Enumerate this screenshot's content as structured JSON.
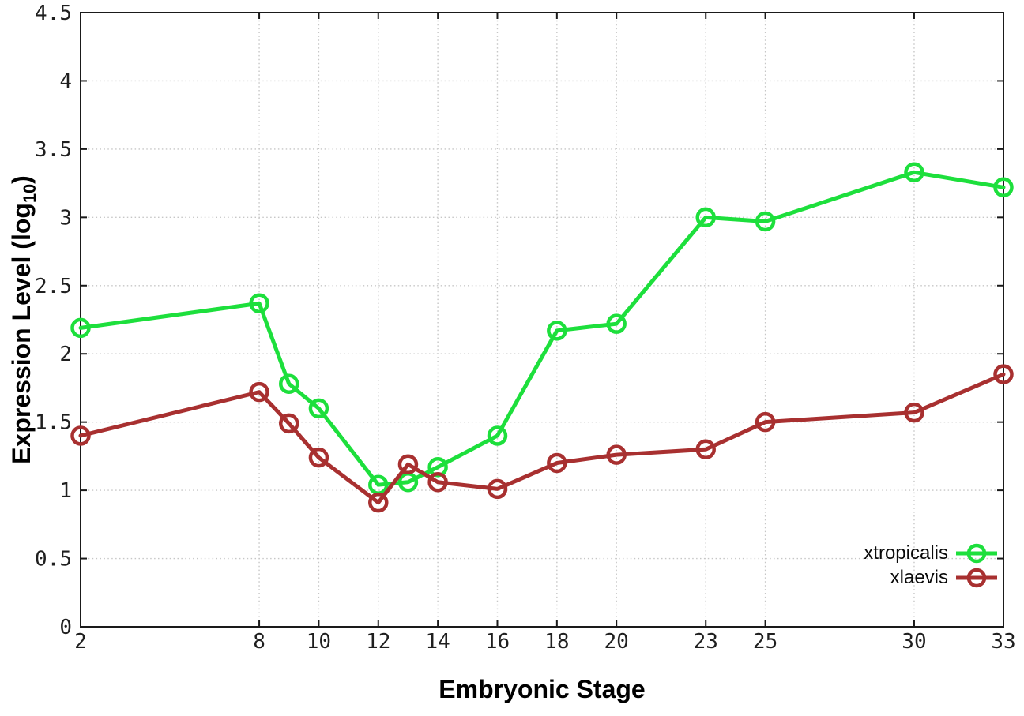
{
  "chart_data": {
    "type": "line",
    "title": "",
    "xlabel": "Embryonic Stage",
    "ylabel": "Expression Level (log10)",
    "ylabel_parts": {
      "main": "Expression Level (log",
      "sub": "10",
      "end": ")"
    },
    "xlim": [
      2,
      33
    ],
    "ylim": [
      0,
      4.5
    ],
    "x_ticks": [
      2,
      8,
      10,
      12,
      14,
      16,
      18,
      20,
      23,
      25,
      30,
      33
    ],
    "y_ticks": [
      0,
      0.5,
      1,
      1.5,
      2,
      2.5,
      3,
      3.5,
      4,
      4.5
    ],
    "grid": true,
    "legend_position": "inside bottom-right",
    "x": [
      2,
      8,
      9,
      10,
      12,
      13,
      14,
      16,
      18,
      20,
      23,
      25,
      30,
      33
    ],
    "series": [
      {
        "name": "xtropicalis",
        "color": "#1ddf3c",
        "values": [
          2.19,
          2.37,
          1.78,
          1.6,
          1.04,
          1.06,
          1.17,
          1.4,
          2.17,
          2.22,
          3.0,
          2.97,
          3.33,
          3.22
        ]
      },
      {
        "name": "xlaevis",
        "color": "#a83030",
        "values": [
          1.4,
          1.72,
          1.49,
          1.24,
          0.91,
          1.19,
          1.06,
          1.01,
          1.2,
          1.26,
          1.3,
          1.5,
          1.57,
          1.85
        ]
      }
    ]
  },
  "style_colors": {
    "border": "#1a1a1a",
    "grid": "#c6c6c6",
    "tick_text": "#1f1f1f"
  }
}
